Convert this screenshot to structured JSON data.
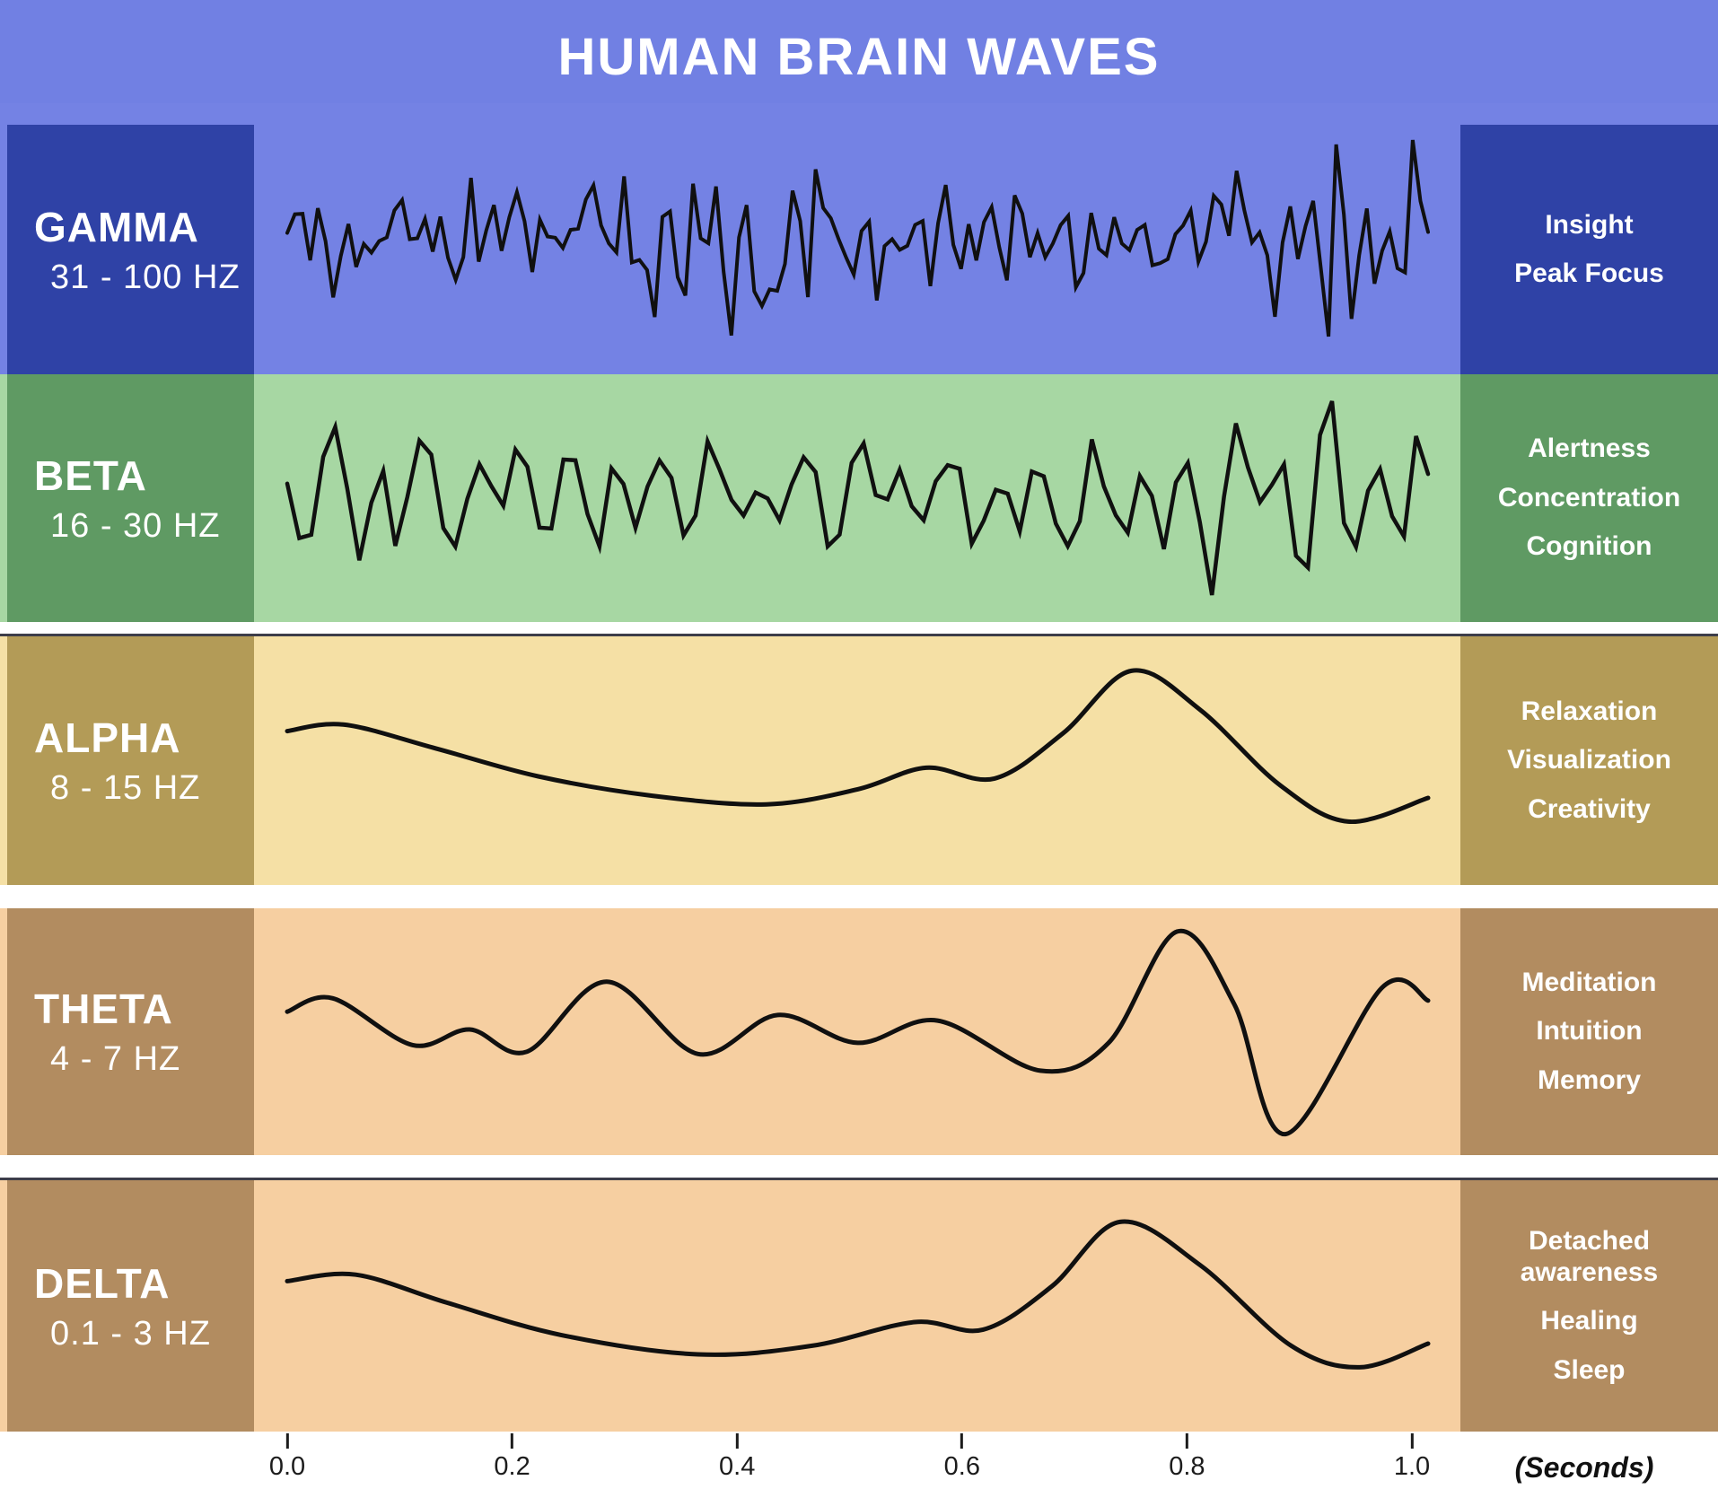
{
  "title": "HUMAN BRAIN WAVES",
  "colors": {
    "header_bg": "#7180e3",
    "wave_stroke": "#101010",
    "gap_line": "#3d3d49",
    "axis_text": "#1c1c1c"
  },
  "rows": [
    {
      "id": "gamma",
      "name": "GAMMA",
      "freq": "31 - 100 HZ",
      "bg": "#7482e4",
      "box": "#2f42a6",
      "descriptions": [
        "Insight",
        "Peak Focus"
      ],
      "wave": {
        "kind": "jagged",
        "seed": 20240601,
        "n": 150,
        "components": [
          [
            46,
            0.4
          ],
          [
            29,
            0.3
          ],
          [
            11,
            0.22
          ]
        ],
        "noise": 0.5,
        "amp": 0.72,
        "env": [
          0.85,
          0.3,
          1.6,
          4.2
        ],
        "spike_chance": 0.06,
        "spike_gain": 0.9
      }
    },
    {
      "id": "beta",
      "name": "BETA",
      "freq": "16 - 30 HZ",
      "bg": "#a7d7a3",
      "box": "#5f9a63",
      "descriptions": [
        "Alertness",
        "Concentration",
        "Cognition"
      ],
      "wave": {
        "kind": "jagged",
        "seed": 9182736,
        "n": 96,
        "components": [
          [
            24,
            0.55
          ],
          [
            15,
            0.3
          ]
        ],
        "noise": 0.3,
        "amp": 0.85,
        "env": [
          0.9,
          0.25,
          1.2,
          0.8
        ],
        "spike_chance": 0.05,
        "spike_gain": 0.6
      }
    },
    {
      "id": "alpha",
      "name": "ALPHA",
      "freq": "8 - 15 HZ",
      "bg": "#f5e0a5",
      "box": "#b39b57",
      "descriptions": [
        "Relaxation",
        "Visualization",
        "Creativity"
      ],
      "wave": {
        "kind": "smooth",
        "points": [
          [
            0,
            -0.32
          ],
          [
            0.05,
            -0.38
          ],
          [
            0.13,
            -0.16
          ],
          [
            0.22,
            0.1
          ],
          [
            0.32,
            0.28
          ],
          [
            0.42,
            0.36
          ],
          [
            0.5,
            0.22
          ],
          [
            0.56,
            0.02
          ],
          [
            0.62,
            0.12
          ],
          [
            0.68,
            -0.3
          ],
          [
            0.74,
            -0.88
          ],
          [
            0.8,
            -0.52
          ],
          [
            0.87,
            0.18
          ],
          [
            0.93,
            0.52
          ],
          [
            1,
            0.3
          ]
        ]
      }
    },
    {
      "id": "theta",
      "name": "THETA",
      "freq": "4 - 7 HZ",
      "bg": "#f6cfa1",
      "box": "#b28c60",
      "descriptions": [
        "Meditation",
        "Intuition",
        "Memory"
      ],
      "wave": {
        "kind": "smooth",
        "points": [
          [
            0,
            -0.18
          ],
          [
            0.04,
            -0.3
          ],
          [
            0.11,
            0.12
          ],
          [
            0.16,
            -0.02
          ],
          [
            0.21,
            0.18
          ],
          [
            0.28,
            -0.45
          ],
          [
            0.36,
            0.2
          ],
          [
            0.43,
            -0.15
          ],
          [
            0.5,
            0.1
          ],
          [
            0.57,
            -0.1
          ],
          [
            0.66,
            0.35
          ],
          [
            0.72,
            0.1
          ],
          [
            0.78,
            -0.9
          ],
          [
            0.83,
            -0.25
          ],
          [
            0.875,
            0.92
          ],
          [
            0.96,
            -0.4
          ],
          [
            1,
            -0.28
          ]
        ]
      }
    },
    {
      "id": "delta",
      "name": "DELTA",
      "freq": "0.1 - 3 HZ",
      "bg": "#f6cfa1",
      "box": "#b28c60",
      "descriptions": [
        "Detached awareness",
        "Healing",
        "Sleep"
      ],
      "wave": {
        "kind": "smooth",
        "points": [
          [
            0,
            -0.3
          ],
          [
            0.06,
            -0.36
          ],
          [
            0.14,
            -0.1
          ],
          [
            0.24,
            0.2
          ],
          [
            0.36,
            0.38
          ],
          [
            0.46,
            0.3
          ],
          [
            0.55,
            0.08
          ],
          [
            0.61,
            0.15
          ],
          [
            0.67,
            -0.25
          ],
          [
            0.73,
            -0.85
          ],
          [
            0.8,
            -0.45
          ],
          [
            0.88,
            0.3
          ],
          [
            0.94,
            0.5
          ],
          [
            1,
            0.28
          ]
        ]
      }
    }
  ],
  "axis": {
    "ticks": [
      "0.0",
      "0.2",
      "0.4",
      "0.6",
      "0.8",
      "1.0"
    ],
    "unit_label": "(Seconds)"
  }
}
